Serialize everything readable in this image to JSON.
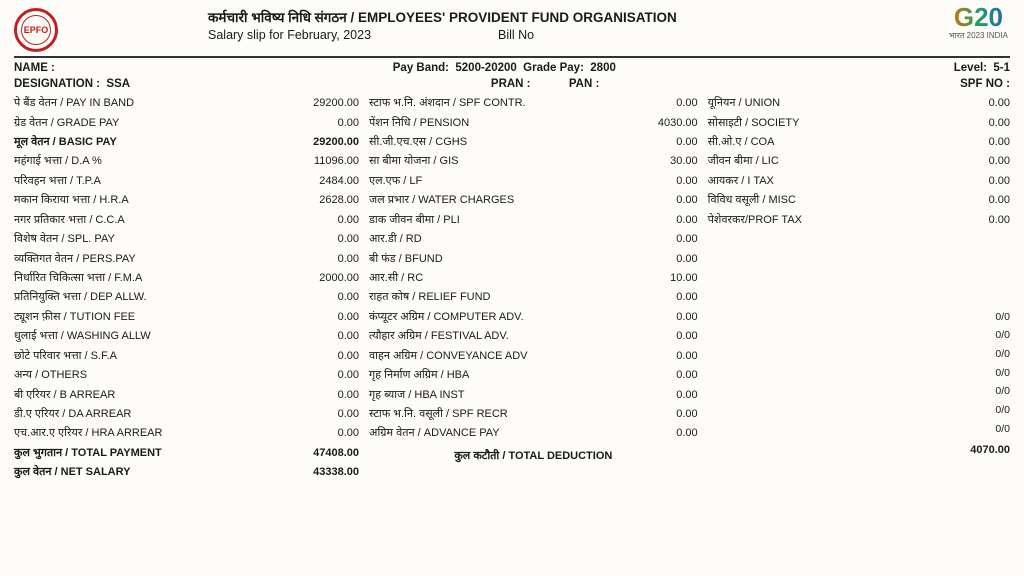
{
  "header": {
    "org_hi": "कर्मचारी भविष्य निधि संगठन",
    "org_en": "EMPLOYEES' PROVIDENT FUND ORGANISATION",
    "slip_for": "Salary slip for  February, 2023",
    "bill_label": "Bill No",
    "g20_text": "G20",
    "g20_sub": "भारत 2023 INDIA"
  },
  "meta": {
    "name_label": "NAME :",
    "payband": "Pay Band:  5200-20200  Grade Pay:  2800",
    "level": "Level:  5-1",
    "designation": "DESIGNATION :  SSA",
    "pran_pan": "PRAN :            PAN :",
    "spf": "SPF NO :"
  },
  "earnings": [
    {
      "l": "पे बैंड वेतन / PAY IN BAND",
      "v": "29200.00"
    },
    {
      "l": "ग्रेड वेतन / GRADE PAY",
      "v": "0.00"
    },
    {
      "l": "मूल वेतन / BASIC PAY",
      "v": "29200.00",
      "b": true
    },
    {
      "l": "महंगाई भत्ता / D.A  %",
      "v": "11096.00"
    },
    {
      "l": "परिवहन भत्ता / T.P.A",
      "v": "2484.00"
    },
    {
      "l": "मकान किराया भत्ता / H.R.A",
      "v": "2628.00"
    },
    {
      "l": "नगर प्रतिकार भत्ता / C.C.A",
      "v": "0.00"
    },
    {
      "l": "विशेष वेतन / SPL. PAY",
      "v": "0.00"
    },
    {
      "l": "व्यक्तिगत वेतन / PERS.PAY",
      "v": "0.00"
    },
    {
      "l": "निर्धारित चिकित्सा भत्ता / F.M.A",
      "v": "2000.00"
    },
    {
      "l": "प्रतिनियुक्ति भत्ता / DEP ALLW.",
      "v": "0.00"
    },
    {
      "l": "ट्यूशन फ़ीस / TUTION FEE",
      "v": "0.00"
    },
    {
      "l": "धुलाई भत्ता / WASHING ALLW",
      "v": "0.00"
    },
    {
      "l": "छोटे परिवार भत्ता / S.F.A",
      "v": "0.00"
    },
    {
      "l": "अन्य / OTHERS",
      "v": "0.00"
    },
    {
      "l": "बी एरियर / B ARREAR",
      "v": "0.00"
    },
    {
      "l": "डी.ए एरियर / DA ARREAR",
      "v": "0.00"
    },
    {
      "l": "एच.आर.ए एरियर / HRA ARREAR",
      "v": "0.00"
    },
    {
      "l": "कुल भुगतान / TOTAL PAYMENT",
      "v": "47408.00",
      "b": true
    },
    {
      "l": "कुल वेतन / NET SALARY",
      "v": "43338.00",
      "b": true
    }
  ],
  "deductions": [
    {
      "l": "स्टाफ भ.नि. अंशदान / SPF CONTR.",
      "v": "0.00"
    },
    {
      "l": "पेंशन निधि / PENSION",
      "v": "4030.00"
    },
    {
      "l": "सी.जी.एच.एस / CGHS",
      "v": "0.00"
    },
    {
      "l": "सा बीमा योजना / GIS",
      "v": "30.00"
    },
    {
      "l": "एल.एफ / LF",
      "v": "0.00"
    },
    {
      "l": "जल प्रभार / WATER CHARGES",
      "v": "0.00"
    },
    {
      "l": "डाक जीवन बीमा / PLI",
      "v": "0.00"
    },
    {
      "l": "आर.डी / RD",
      "v": "0.00"
    },
    {
      "l": "बी फंड  / BFUND",
      "v": "0.00"
    },
    {
      "l": "आर.सी / RC",
      "v": "10.00"
    },
    {
      "l": "राहत कोष / RELIEF FUND",
      "v": "0.00"
    },
    {
      "l": "कंप्यूटर अग्रिम / COMPUTER ADV.",
      "v": "0.00"
    },
    {
      "l": "त्यौहार अग्रिम / FESTIVAL ADV.",
      "v": "0.00"
    },
    {
      "l": "वाहन अग्रिम / CONVEYANCE ADV",
      "v": "0.00"
    },
    {
      "l": "गृह निर्माण अग्रिम / HBA",
      "v": "0.00"
    },
    {
      "l": "गृह ब्याज / HBA INST",
      "v": "0.00"
    },
    {
      "l": "स्टाफ भ.नि. वसूली / SPF RECR",
      "v": "0.00"
    },
    {
      "l": "अग्रिम वेतन /  ADVANCE PAY",
      "v": "0.00"
    }
  ],
  "total_deduction": {
    "l": "कुल कटौती / TOTAL DEDUCTION",
    "v": "4070.00"
  },
  "col3": [
    {
      "l": "यूनियन / UNION",
      "v": "0.00"
    },
    {
      "l": "सोसाइटी / SOCIETY",
      "v": "0.00"
    },
    {
      "l": "सी.ओ.ए / COA",
      "v": "0.00"
    },
    {
      "l": "जीवन बीमा / LIC",
      "v": "0.00"
    },
    {
      "l": "आयकर / I TAX",
      "v": "0.00"
    },
    {
      "l": "विविध वसूली / MISC",
      "v": "0.00"
    },
    {
      "l": "पेशेवरकर/PROF TAX",
      "v": "0.00"
    }
  ],
  "ratios": [
    "0/0",
    "0/0",
    "0/0",
    "0/0",
    "0/0",
    "0/0",
    "0/0"
  ]
}
